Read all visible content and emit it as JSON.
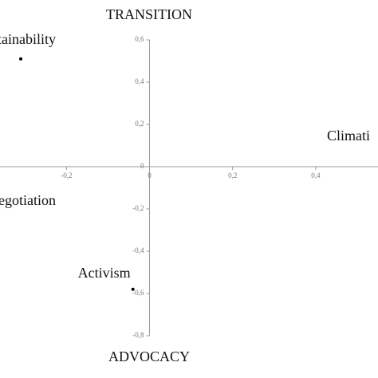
{
  "chart_data": {
    "type": "scatter",
    "top_label": "TRANSITION",
    "bottom_label": "ADVOCACY",
    "x": [
      -0.31,
      -0.04
    ],
    "values": [
      0.51,
      -0.58
    ],
    "point_labels": [
      "tainability",
      "Activism"
    ],
    "annotations": [
      "Climati",
      "egotiation"
    ],
    "color": "#000000",
    "xlim": [
      -0.36,
      0.55
    ],
    "ylim": [
      -0.8,
      0.6
    ],
    "xticks": [
      {
        "value": -0.2,
        "label": "-0,2"
      },
      0,
      {
        "value": 0.2,
        "label": "0,2"
      },
      {
        "value": 0.4,
        "label": "0,4"
      }
    ],
    "yticks": [
      {
        "value": -0.8,
        "label": "-0,8"
      },
      {
        "value": -0.6,
        "label": "-0,6"
      },
      {
        "value": -0.4,
        "label": "-0,4"
      },
      {
        "value": -0.2,
        "label": "-0,2"
      },
      0,
      {
        "value": 0.2,
        "label": "0,2"
      },
      {
        "value": 0.4,
        "label": "0,4"
      },
      {
        "value": 0.6,
        "label": "0,6"
      }
    ]
  }
}
